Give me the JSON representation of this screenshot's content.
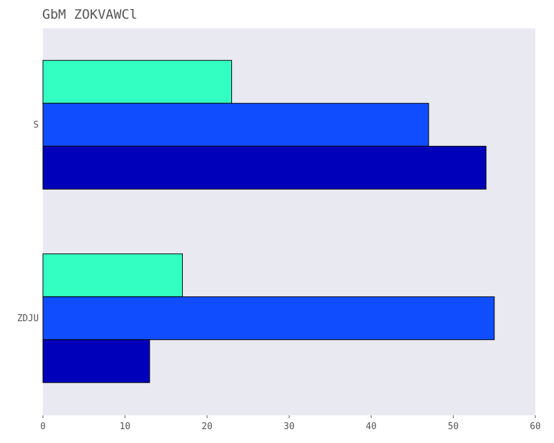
{
  "chart_data": {
    "type": "bar",
    "orientation": "horizontal",
    "title": "GbM ZOKVAWCl",
    "xlabel": "",
    "ylabel": "",
    "xlim": [
      0,
      60
    ],
    "xticks": [
      0,
      10,
      20,
      30,
      40,
      50,
      60
    ],
    "categories": [
      "S",
      "ZDJU"
    ],
    "series": [
      {
        "name": "series-1",
        "color": "#33ffc3",
        "values": [
          23,
          17
        ]
      },
      {
        "name": "series-2",
        "color": "#0f4dff",
        "values": [
          47,
          55
        ]
      },
      {
        "name": "series-3",
        "color": "#0000bb",
        "values": [
          54,
          13
        ]
      }
    ],
    "grid": false,
    "plot_background": "#e9e9f2",
    "edge_color": "#000000"
  }
}
